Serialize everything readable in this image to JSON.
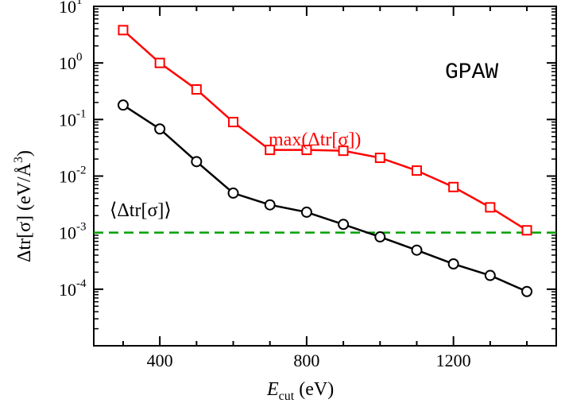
{
  "chart_data": {
    "type": "line",
    "title": "",
    "annotation": "GPAW",
    "xlabel_main": "E",
    "xlabel_sub": "cut",
    "xlabel_unit": "(eV)",
    "ylabel_text": "Δtr[σ]  (eV/Å",
    "ylabel_sup": "3",
    "ylabel_close": ")",
    "xlim": [
      220,
      1480
    ],
    "ylim_log10": [
      -5,
      1
    ],
    "yscale": "log",
    "x_ticks": [
      400,
      800,
      1200
    ],
    "x_tick_labels": [
      "400",
      "800",
      "1200"
    ],
    "y_tick_exponents": [
      1,
      0,
      -1,
      -2,
      -3,
      -4
    ],
    "y_tick_labels": [
      {
        "base": "10",
        "exp": "1"
      },
      {
        "base": "10",
        "exp": "0"
      },
      {
        "base": "10",
        "exp": "-1"
      },
      {
        "base": "10",
        "exp": "-2"
      },
      {
        "base": "10",
        "exp": "-3"
      },
      {
        "base": "10",
        "exp": "-4"
      }
    ],
    "x": [
      300,
      400,
      500,
      600,
      700,
      800,
      900,
      1000,
      1100,
      1200,
      1300,
      1400
    ],
    "series": [
      {
        "name": "max(Δtr[σ])",
        "color": "#ff0000",
        "marker": "square",
        "values": [
          3.8,
          1.0,
          0.34,
          0.09,
          0.029,
          0.029,
          0.028,
          0.021,
          0.0125,
          0.0064,
          0.0028,
          0.0011
        ]
      },
      {
        "name": "⟨Δtr[σ]⟩",
        "color": "#000000",
        "marker": "circle",
        "values": [
          0.18,
          0.068,
          0.018,
          0.005,
          0.0031,
          0.0023,
          0.0014,
          0.00084,
          0.00049,
          0.00028,
          0.000175,
          9.1e-05
        ]
      }
    ],
    "reference_line": {
      "y": 0.001,
      "color": "#00a000",
      "style": "dashed"
    }
  }
}
